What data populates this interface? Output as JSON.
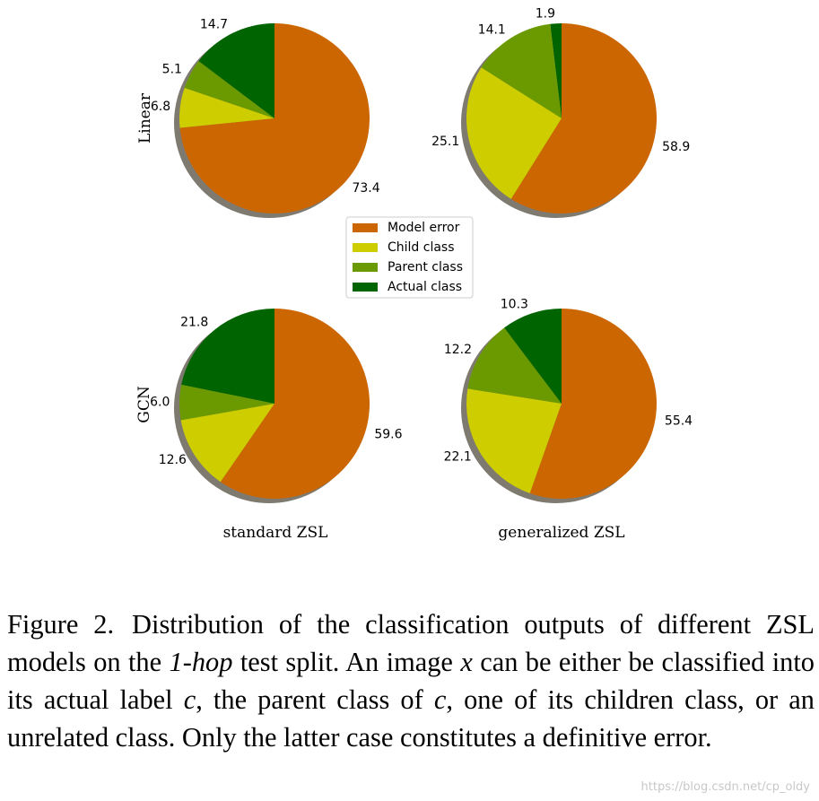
{
  "chart_data": [
    {
      "type": "pie",
      "row_label": "Linear",
      "column_label": "standard ZSL",
      "labels": [
        "Actual class",
        "Parent class",
        "Child class",
        "Model error"
      ],
      "values": [
        14.7,
        5.1,
        6.8,
        73.4
      ],
      "colors": [
        "#006400",
        "#6b9a00",
        "#cdcd00",
        "#cc6600"
      ]
    },
    {
      "type": "pie",
      "row_label": "Linear",
      "column_label": "generalized ZSL",
      "labels": [
        "Actual class",
        "Parent class",
        "Child class",
        "Model error"
      ],
      "values": [
        1.9,
        14.1,
        25.1,
        58.9
      ],
      "colors": [
        "#006400",
        "#6b9a00",
        "#cdcd00",
        "#cc6600"
      ]
    },
    {
      "type": "pie",
      "row_label": "GCN",
      "column_label": "standard ZSL",
      "labels": [
        "Actual class",
        "Parent class",
        "Child class",
        "Model error"
      ],
      "values": [
        21.8,
        6.0,
        12.6,
        59.6
      ],
      "colors": [
        "#006400",
        "#6b9a00",
        "#cdcd00",
        "#cc6600"
      ]
    },
    {
      "type": "pie",
      "row_label": "GCN",
      "column_label": "generalized ZSL",
      "labels": [
        "Actual class",
        "Parent class",
        "Child class",
        "Model error"
      ],
      "values": [
        10.3,
        12.2,
        22.1,
        55.4
      ],
      "colors": [
        "#006400",
        "#6b9a00",
        "#cdcd00",
        "#cc6600"
      ]
    }
  ],
  "legend": {
    "placement": "center",
    "entries": [
      {
        "label": "Model error",
        "color": "#cc6600"
      },
      {
        "label": "Child class",
        "color": "#cdcd00"
      },
      {
        "label": "Parent class",
        "color": "#6b9a00"
      },
      {
        "label": "Actual class",
        "color": "#006400"
      }
    ]
  },
  "row_labels": [
    "Linear",
    "GCN"
  ],
  "column_labels": [
    "standard ZSL",
    "generalized ZSL"
  ],
  "shadow_color": "#7f7a70",
  "caption": {
    "label": "Figure 2.",
    "part1": "Distribution of the classification outputs of different ZSL models on the ",
    "italic_term": "1-hop",
    "part2": " test split. An image ",
    "var_x": "x",
    "part3": " can be either be classified into its actual label ",
    "var_c1": "c",
    "part4": ", the parent class of ",
    "var_c2": "c",
    "part5": ", one of its children class, or an unrelated class. Only the latter case constitutes a definitive error."
  },
  "watermark": "https://blog.csdn.net/cp_oldy"
}
